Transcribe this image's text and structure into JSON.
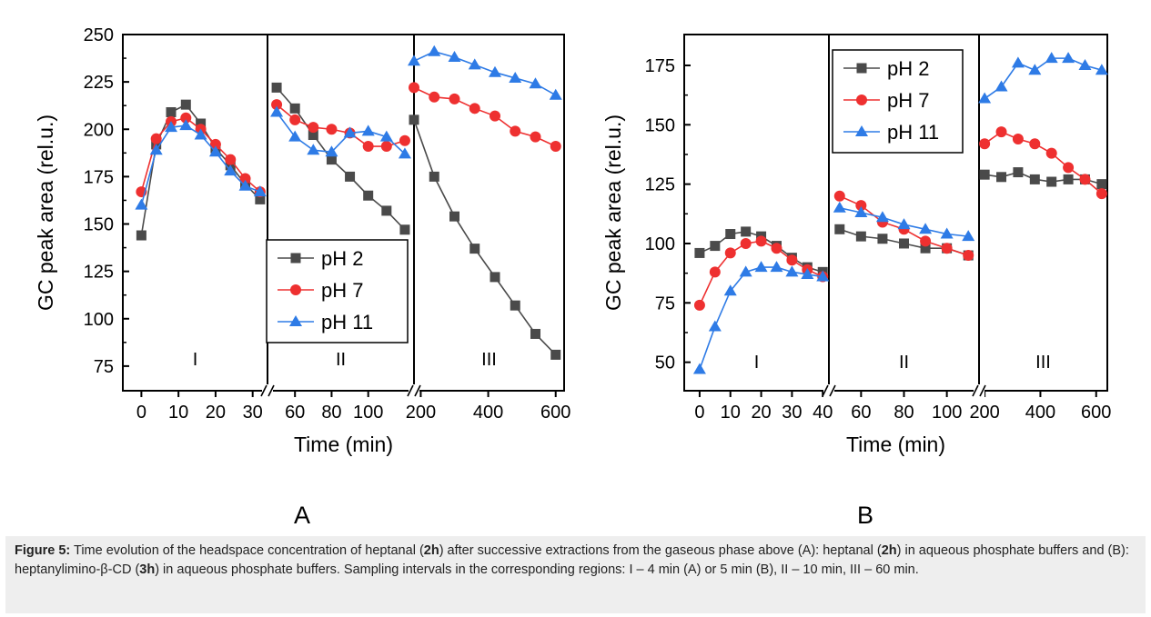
{
  "chart_data": [
    {
      "type": "line",
      "panel_label": "A",
      "ylabel": "GC peak area (rel.u.)",
      "xlabel": "Time (min)",
      "ylim": [
        62,
        250
      ],
      "yticks": [
        75,
        100,
        125,
        150,
        175,
        200,
        225,
        250
      ],
      "legend": {
        "position": "middle-right",
        "entries": [
          "pH 2",
          "pH 7",
          "pH 11"
        ]
      },
      "series_colors": [
        "#4a4a4a",
        "#ee3030",
        "#2e7be6"
      ],
      "series_markers": [
        "square",
        "circle",
        "triangle"
      ],
      "segments": [
        {
          "label": "I",
          "xlim": [
            -5,
            34
          ],
          "xticks": [
            0,
            10,
            20,
            30
          ],
          "series": [
            {
              "name": "pH 2",
              "x": [
                0,
                4,
                8,
                12,
                16,
                20,
                24,
                28,
                32
              ],
              "y": [
                144,
                192,
                209,
                213,
                203,
                190,
                181,
                171,
                163
              ]
            },
            {
              "name": "pH 7",
              "x": [
                0,
                4,
                8,
                12,
                16,
                20,
                24,
                28,
                32
              ],
              "y": [
                167,
                195,
                204,
                206,
                200,
                192,
                184,
                174,
                167
              ]
            },
            {
              "name": "pH 11",
              "x": [
                0,
                4,
                8,
                12,
                16,
                20,
                24,
                28,
                32
              ],
              "y": [
                160,
                189,
                201,
                202,
                197,
                188,
                178,
                170,
                167
              ]
            }
          ]
        },
        {
          "label": "II",
          "xlim": [
            45,
            125
          ],
          "xticks": [
            60,
            80,
            100
          ],
          "series": [
            {
              "name": "pH 2",
              "x": [
                50,
                60,
                70,
                80,
                90,
                100,
                110,
                120
              ],
              "y": [
                222,
                211,
                197,
                184,
                175,
                165,
                157,
                147
              ]
            },
            {
              "name": "pH 7",
              "x": [
                50,
                60,
                70,
                80,
                90,
                100,
                110,
                120
              ],
              "y": [
                213,
                205,
                201,
                200,
                198,
                191,
                191,
                194
              ]
            },
            {
              "name": "pH 11",
              "x": [
                50,
                60,
                70,
                80,
                90,
                100,
                110,
                120
              ],
              "y": [
                209,
                196,
                189,
                188,
                198,
                199,
                196,
                187
              ]
            }
          ]
        },
        {
          "label": "III",
          "xlim": [
            180,
            625
          ],
          "xticks": [
            200,
            400,
            600
          ],
          "series": [
            {
              "name": "pH 2",
              "x": [
                180,
                240,
                300,
                360,
                420,
                480,
                540,
                600
              ],
              "y": [
                205,
                175,
                154,
                137,
                122,
                107,
                92,
                81
              ]
            },
            {
              "name": "pH 7",
              "x": [
                180,
                240,
                300,
                360,
                420,
                480,
                540,
                600
              ],
              "y": [
                222,
                217,
                216,
                211,
                207,
                199,
                196,
                191
              ]
            },
            {
              "name": "pH 11",
              "x": [
                180,
                240,
                300,
                360,
                420,
                480,
                540,
                600
              ],
              "y": [
                236,
                241,
                238,
                234,
                230,
                227,
                224,
                218
              ]
            }
          ]
        }
      ]
    },
    {
      "type": "line",
      "panel_label": "B",
      "ylabel": "GC peak area (rel.u.)",
      "xlabel": "Time (min)",
      "ylim": [
        38,
        188
      ],
      "yticks": [
        50,
        75,
        100,
        125,
        150,
        175
      ],
      "legend": {
        "position": "top-middle",
        "entries": [
          "pH 2",
          "pH 7",
          "pH 11"
        ]
      },
      "series_colors": [
        "#4a4a4a",
        "#ee3030",
        "#2e7be6"
      ],
      "series_markers": [
        "square",
        "circle",
        "triangle"
      ],
      "segments": [
        {
          "label": "I",
          "xlim": [
            -5,
            42
          ],
          "xticks": [
            0,
            10,
            20,
            30,
            40
          ],
          "series": [
            {
              "name": "pH 2",
              "x": [
                0,
                5,
                10,
                15,
                20,
                25,
                30,
                35,
                40
              ],
              "y": [
                96,
                99,
                104,
                105,
                103,
                99,
                94,
                90,
                88
              ]
            },
            {
              "name": "pH 7",
              "x": [
                0,
                5,
                10,
                15,
                20,
                25,
                30,
                35,
                40
              ],
              "y": [
                74,
                88,
                96,
                100,
                101,
                98,
                93,
                89,
                86
              ]
            },
            {
              "name": "pH 11",
              "x": [
                0,
                5,
                10,
                15,
                20,
                25,
                30,
                35,
                40
              ],
              "y": [
                47,
                65,
                80,
                88,
                90,
                90,
                88,
                87,
                86
              ]
            }
          ]
        },
        {
          "label": "II",
          "xlim": [
            45,
            115
          ],
          "xticks": [
            60,
            80,
            100
          ],
          "series": [
            {
              "name": "pH 2",
              "x": [
                50,
                60,
                70,
                80,
                90,
                100,
                110
              ],
              "y": [
                106,
                103,
                102,
                100,
                98,
                98,
                95
              ]
            },
            {
              "name": "pH 7",
              "x": [
                50,
                60,
                70,
                80,
                90,
                100,
                110
              ],
              "y": [
                120,
                116,
                109,
                106,
                101,
                98,
                95
              ]
            },
            {
              "name": "pH 11",
              "x": [
                50,
                60,
                70,
                80,
                90,
                100,
                110
              ],
              "y": [
                115,
                113,
                111,
                108,
                106,
                104,
                103
              ]
            }
          ]
        },
        {
          "label": "III",
          "xlim": [
            180,
            640
          ],
          "xticks": [
            200,
            400,
            600
          ],
          "series": [
            {
              "name": "pH 2",
              "x": [
                200,
                260,
                320,
                380,
                440,
                500,
                560,
                620
              ],
              "y": [
                129,
                128,
                130,
                127,
                126,
                127,
                127,
                125
              ]
            },
            {
              "name": "pH 7",
              "x": [
                200,
                260,
                320,
                380,
                440,
                500,
                560,
                620
              ],
              "y": [
                142,
                147,
                144,
                142,
                138,
                132,
                127,
                121
              ]
            },
            {
              "name": "pH 11",
              "x": [
                200,
                260,
                320,
                380,
                440,
                500,
                560,
                620
              ],
              "y": [
                161,
                166,
                176,
                173,
                178,
                178,
                175,
                173
              ]
            }
          ]
        }
      ]
    }
  ],
  "caption": {
    "label": "Figure 5:",
    "parts": [
      {
        "t": " Time evolution of the headspace concentration of heptanal (",
        "b": false
      },
      {
        "t": "2h",
        "b": true
      },
      {
        "t": ") after successive extractions from the gaseous phase above (A): heptanal (",
        "b": false
      },
      {
        "t": "2h",
        "b": true
      },
      {
        "t": ") in aqueous phosphate buffers and (B): heptanylimino-β-CD (",
        "b": false
      },
      {
        "t": "3h",
        "b": true
      },
      {
        "t": ") in aqueous phosphate buffers. Sampling intervals in the corresponding regions: I – 4 min (A) or 5 min (B), II – 10 min, III – 60 min.",
        "b": false
      }
    ]
  }
}
